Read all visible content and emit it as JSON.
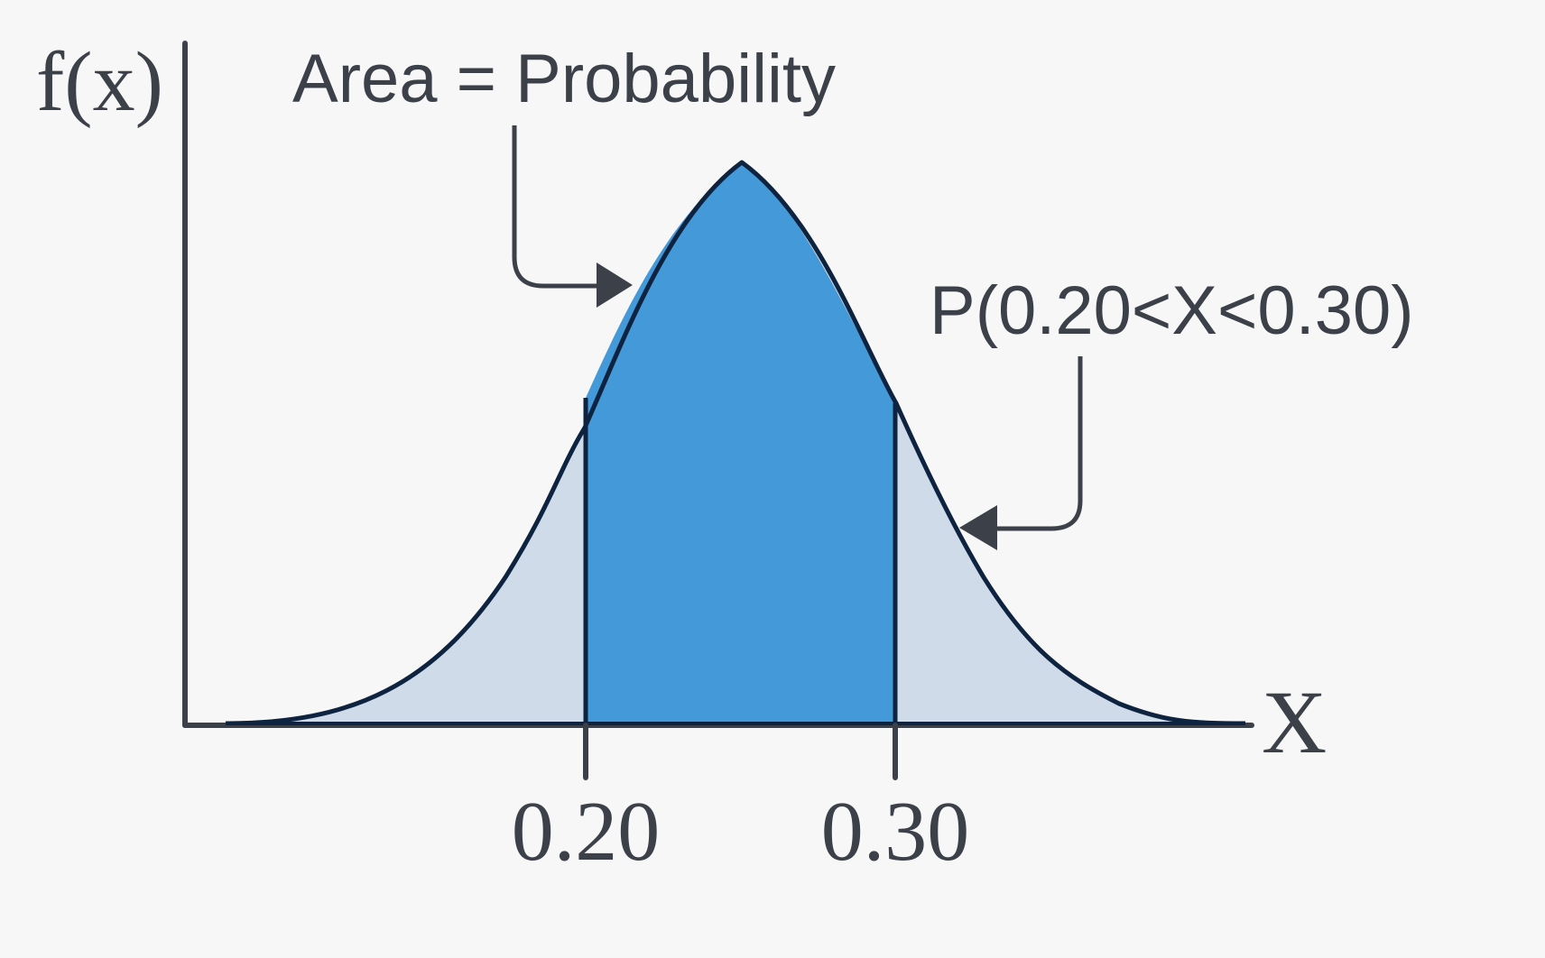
{
  "labels": {
    "y_axis": "f(x)",
    "x_axis": "X",
    "area_callout": "Area = Probability",
    "prob_callout": "P(0.20<X<0.30)",
    "tick_low": "0.20",
    "tick_high": "0.30"
  },
  "colors": {
    "background": "#f7f7f7",
    "axis": "#3b4049",
    "curve_stroke": "#0d2340",
    "tail_fill": "#cfdbe8",
    "highlight_fill": "#4499d8",
    "text": "#3b4049"
  },
  "icons": {
    "area_pointer": "arrow-right-icon",
    "prob_pointer": "arrow-left-icon"
  }
}
